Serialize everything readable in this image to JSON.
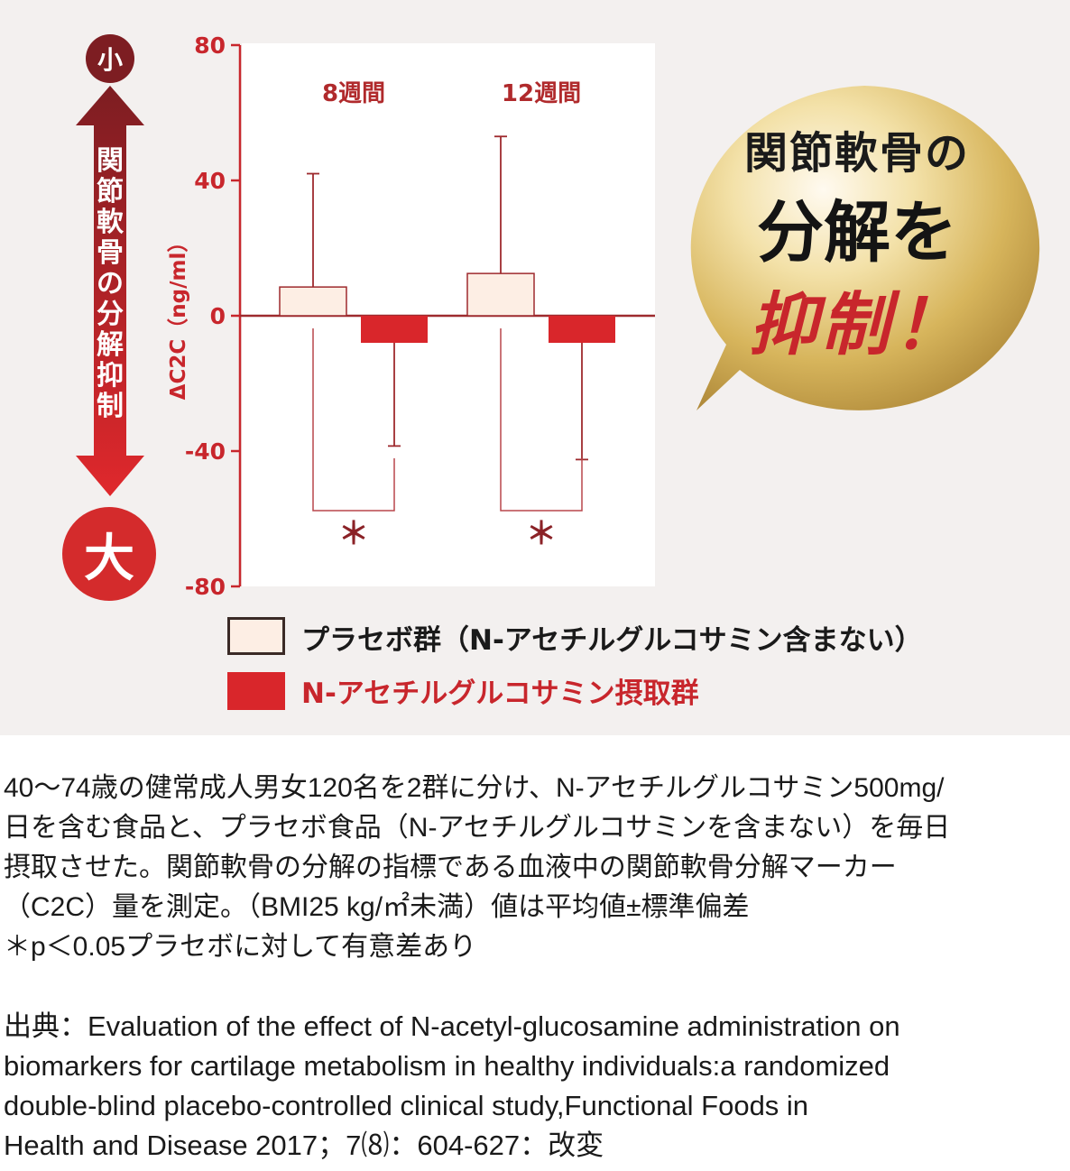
{
  "chart_data": {
    "type": "bar",
    "categories": [
      "8週間",
      "12週間"
    ],
    "series": [
      {
        "name": "プラセボ群（N-アセチルグルコサミン含まない）",
        "color": "#fdeee4",
        "values": [
          8.5,
          12.5
        ],
        "error_bar_ends": [
          42,
          53
        ]
      },
      {
        "name": "N-アセチルグルコサミン摂取群",
        "color": "#d9262b",
        "values": [
          -8,
          -8
        ],
        "error_bar_ends": [
          -38.5,
          -42.5
        ]
      }
    ],
    "ylabel": "ΔC2C（ng/ml）",
    "ylim": [
      -80,
      80
    ],
    "yticks": [
      "80",
      "40",
      "0",
      "-40",
      "-80"
    ],
    "significance": [
      "＊",
      "＊"
    ],
    "grid": false
  },
  "scale": {
    "small": "小",
    "large": "大",
    "label": "関節軟骨の分解抑制"
  },
  "claim": {
    "line1": "関節軟骨の",
    "line2": "分解を",
    "line3": "抑制！"
  },
  "legend": {
    "placebo": "プラセボ群（N-アセチルグルコサミン含まない）",
    "treatment": "N-アセチルグルコサミン摂取群"
  },
  "notes": {
    "lines": [
      "40～74歳の健常成人男女120名を2群に分け、N-アセチルグルコサミン500mg/",
      "日を含む食品と、プラセボ食品（N-アセチルグルコサミンを含まない）を毎日",
      "摂取させた。関節軟骨の分解の指標である血液中の関節軟骨分解マーカー",
      "（C2C）量を測定。（BMI25 kg/㎡未満）値は平均値±標準偏差",
      "＊p＜0.05プラセボに対して有意差あり"
    ],
    "source": [
      "出典：Evaluation of the effect of N-acetyl-glucosamine administration on",
      "biomarkers for cartilage metabolism in healthy individuals:a randomized",
      "double-blind placebo-controlled clinical study,Functional Foods in",
      "Health  and Disease 2017；7⑻：604-627：改変"
    ]
  },
  "colors": {
    "accent_red": "#c8262c",
    "dark_red": "#7d1d22",
    "placebo_fill": "#fdeee4",
    "treatment_fill": "#d9262b",
    "gold": "#e2c26a"
  }
}
